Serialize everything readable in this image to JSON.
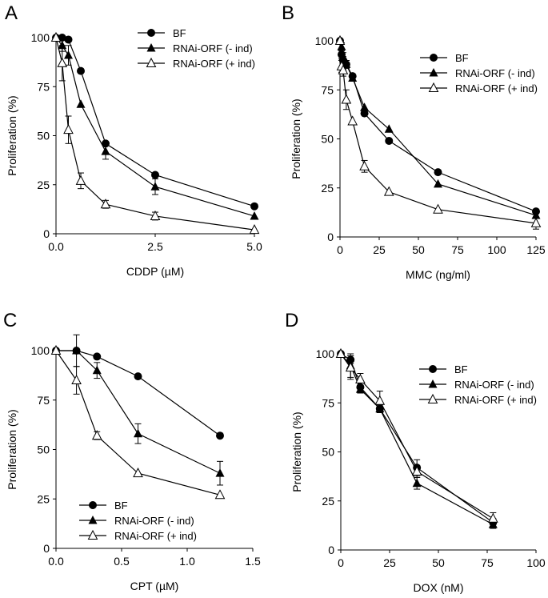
{
  "chart_data": [
    {
      "type": "line",
      "panel": "A",
      "title": "",
      "xlabel": "CDDP (µM)",
      "ylabel": "Proliferation (%)",
      "xlim": [
        0,
        5
      ],
      "ylim": [
        0,
        100
      ],
      "xticks": [
        0,
        2.5,
        5
      ],
      "xtick_labels": [
        "0.0",
        "2.5",
        "5.0"
      ],
      "yticks": [
        0,
        25,
        50,
        75,
        100
      ],
      "ytick_labels": [
        "0",
        "25",
        "50",
        "75",
        "100"
      ],
      "legend_position": "top-right",
      "series": [
        {
          "name": "BF",
          "marker": "circle",
          "x": [
            0,
            0.156,
            0.3125,
            0.625,
            1.25,
            2.5,
            5.0
          ],
          "values": [
            100,
            100,
            99,
            83,
            46,
            30,
            14
          ],
          "errors": [
            0,
            0,
            0,
            0,
            0,
            0,
            0
          ]
        },
        {
          "name": "RNAi-ORF (- ind)",
          "marker": "triangle-filled",
          "x": [
            0,
            0.156,
            0.3125,
            0.625,
            1.25,
            2.5,
            5.0
          ],
          "values": [
            100,
            96,
            91,
            66,
            42,
            24,
            9
          ],
          "errors": [
            0,
            3,
            5,
            0,
            4,
            4,
            0
          ]
        },
        {
          "name": "RNAi-ORF (+ ind)",
          "marker": "triangle-open",
          "x": [
            0,
            0.156,
            0.3125,
            0.625,
            1.25,
            2.5,
            5.0
          ],
          "values": [
            100,
            87,
            53,
            27,
            15,
            9,
            2
          ],
          "errors": [
            0,
            9,
            7,
            4,
            2,
            2,
            0
          ]
        }
      ]
    },
    {
      "type": "line",
      "panel": "B",
      "title": "",
      "xlabel": "MMC (ng/ml)",
      "ylabel": "Proliferation (%)",
      "xlim": [
        0,
        125
      ],
      "ylim": [
        0,
        100
      ],
      "xticks": [
        0,
        25,
        50,
        75,
        100,
        125
      ],
      "xtick_labels": [
        "0",
        "25",
        "50",
        "75",
        "100",
        "125"
      ],
      "yticks": [
        0,
        25,
        50,
        75,
        100
      ],
      "ytick_labels": [
        "0",
        "25",
        "50",
        "75",
        "100"
      ],
      "legend_position": "top-right",
      "series": [
        {
          "name": "BF",
          "marker": "circle",
          "x": [
            0,
            1,
            2,
            4,
            8,
            15.6,
            31.25,
            62.5,
            125
          ],
          "values": [
            100,
            93,
            90,
            88,
            82,
            63,
            49,
            33,
            13
          ],
          "errors": [
            0,
            2,
            2,
            2,
            0,
            0,
            0,
            0,
            0
          ]
        },
        {
          "name": "RNAi-ORF (- ind)",
          "marker": "triangle-filled",
          "x": [
            0,
            1,
            2,
            4,
            8,
            15.6,
            31.25,
            62.5,
            125
          ],
          "values": [
            100,
            97,
            92,
            88,
            81,
            66,
            55,
            27,
            11
          ],
          "errors": [
            0,
            2,
            2,
            2,
            0,
            0,
            0,
            0,
            0
          ]
        },
        {
          "name": "RNAi-ORF (+ ind)",
          "marker": "triangle-open",
          "x": [
            0,
            1,
            2,
            4,
            8,
            15.6,
            31.25,
            62.5,
            125
          ],
          "values": [
            100,
            87,
            85,
            70,
            59,
            36,
            23,
            14,
            7
          ],
          "errors": [
            0,
            3,
            3,
            5,
            0,
            3,
            0,
            0,
            3
          ]
        }
      ]
    },
    {
      "type": "line",
      "panel": "C",
      "title": "",
      "xlabel": "CPT (µM)",
      "ylabel": "Proliferation (%)",
      "xlim": [
        0,
        1.5
      ],
      "ylim": [
        0,
        100
      ],
      "xticks": [
        0,
        0.5,
        1,
        1.5
      ],
      "xtick_labels": [
        "0.0",
        "0.5",
        "1.0",
        "1.5"
      ],
      "yticks": [
        0,
        25,
        50,
        75,
        100
      ],
      "ytick_labels": [
        "0",
        "25",
        "50",
        "75",
        "100"
      ],
      "legend_position": "bottom-left",
      "series": [
        {
          "name": "BF",
          "marker": "circle",
          "x": [
            0,
            0.156,
            0.3125,
            0.625,
            1.25
          ],
          "values": [
            100,
            100,
            97,
            87,
            57
          ],
          "errors": [
            0,
            0,
            0,
            0,
            0
          ]
        },
        {
          "name": "RNAi-ORF (- ind)",
          "marker": "triangle-filled",
          "x": [
            0,
            0.156,
            0.3125,
            0.625,
            1.25
          ],
          "values": [
            100,
            100,
            90,
            58,
            38
          ],
          "errors": [
            0,
            8,
            4,
            5,
            6
          ]
        },
        {
          "name": "RNAi-ORF (+ ind)",
          "marker": "triangle-open",
          "x": [
            0,
            0.156,
            0.3125,
            0.625,
            1.25
          ],
          "values": [
            100,
            85,
            57,
            38,
            27
          ],
          "errors": [
            0,
            7,
            2,
            0,
            0
          ]
        }
      ]
    },
    {
      "type": "line",
      "panel": "D",
      "title": "",
      "xlabel": "DOX (nM)",
      "ylabel": "Proliferation (%)",
      "xlim": [
        0,
        100
      ],
      "ylim": [
        0,
        100
      ],
      "xticks": [
        0,
        25,
        50,
        75,
        100
      ],
      "xtick_labels": [
        "0",
        "25",
        "50",
        "75",
        "100"
      ],
      "yticks": [
        0,
        25,
        50,
        75,
        100
      ],
      "ytick_labels": [
        "0",
        "25",
        "50",
        "75",
        "100"
      ],
      "legend_position": "top-right",
      "series": [
        {
          "name": "BF",
          "marker": "circle",
          "x": [
            0,
            5,
            10,
            20,
            39,
            78
          ],
          "values": [
            100,
            97,
            83,
            72,
            42,
            14
          ],
          "errors": [
            0,
            2,
            3,
            2,
            4,
            2
          ]
        },
        {
          "name": "RNAi-ORF (- ind)",
          "marker": "triangle-filled",
          "x": [
            0,
            5,
            10,
            20,
            39,
            78
          ],
          "values": [
            100,
            94,
            82,
            72,
            34,
            13
          ],
          "errors": [
            0,
            6,
            2,
            2,
            3,
            2
          ]
        },
        {
          "name": "RNAi-ORF (+ ind)",
          "marker": "triangle-open",
          "x": [
            0,
            5,
            10,
            20,
            39,
            78
          ],
          "values": [
            100,
            93,
            87,
            76,
            40,
            16
          ],
          "errors": [
            0,
            6,
            3,
            5,
            3,
            3
          ]
        }
      ]
    }
  ]
}
